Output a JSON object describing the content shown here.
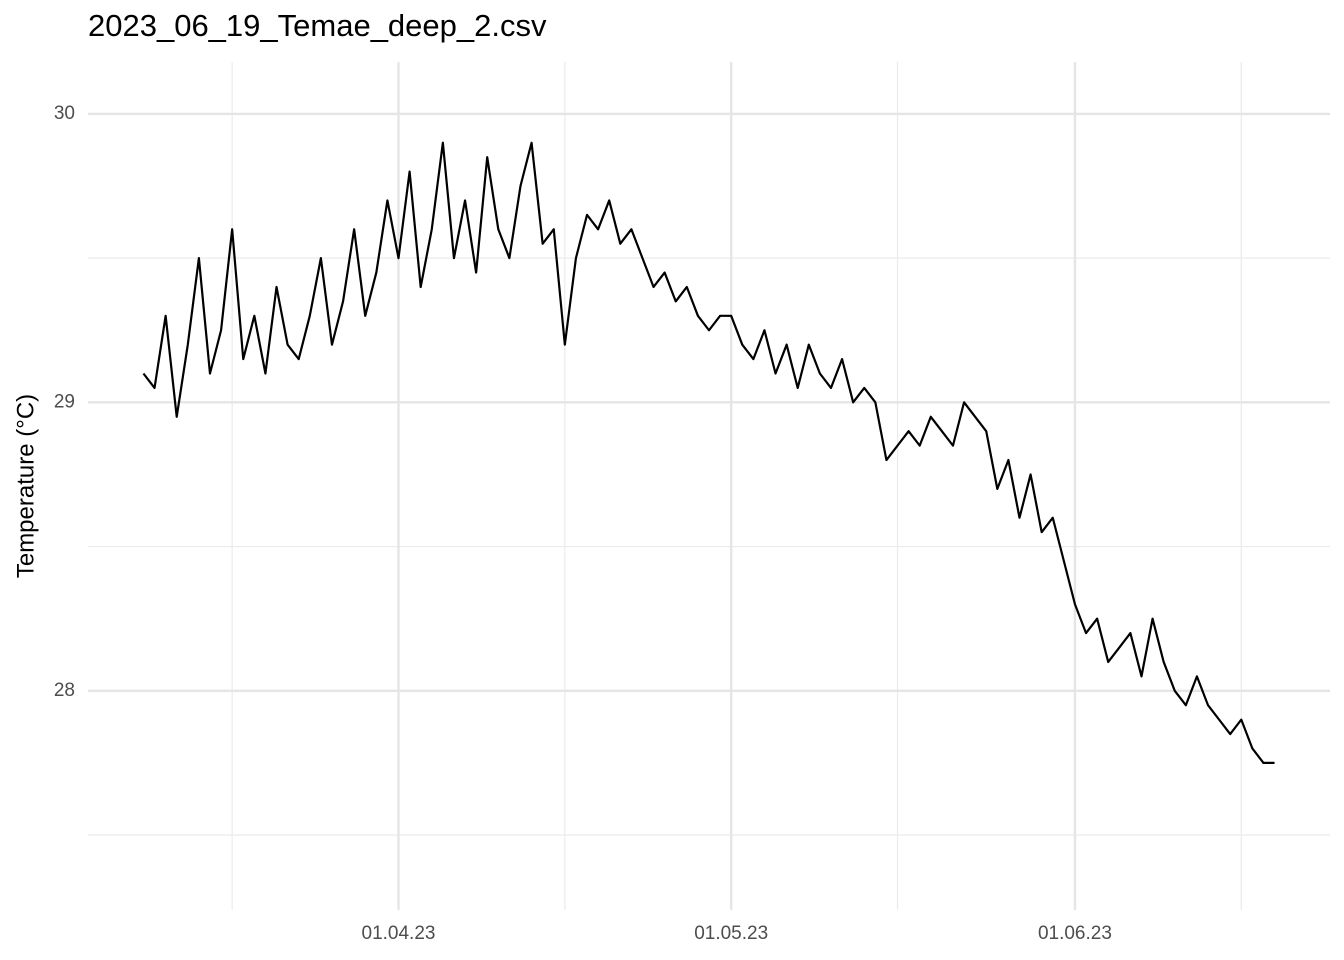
{
  "chart_data": {
    "type": "line",
    "title": "2023_06_19_Temae_deep_2.csv",
    "y_label": "Temperature (°C)",
    "color": "#000000",
    "grid": true,
    "x": [
      "2023-03-09",
      "2023-03-10",
      "2023-03-11",
      "2023-03-12",
      "2023-03-13",
      "2023-03-14",
      "2023-03-15",
      "2023-03-16",
      "2023-03-17",
      "2023-03-18",
      "2023-03-19",
      "2023-03-20",
      "2023-03-21",
      "2023-03-22",
      "2023-03-23",
      "2023-03-24",
      "2023-03-25",
      "2023-03-26",
      "2023-03-27",
      "2023-03-28",
      "2023-03-29",
      "2023-03-30",
      "2023-03-31",
      "2023-04-01",
      "2023-04-02",
      "2023-04-03",
      "2023-04-04",
      "2023-04-05",
      "2023-04-06",
      "2023-04-07",
      "2023-04-08",
      "2023-04-09",
      "2023-04-10",
      "2023-04-11",
      "2023-04-12",
      "2023-04-13",
      "2023-04-14",
      "2023-04-15",
      "2023-04-16",
      "2023-04-17",
      "2023-04-18",
      "2023-04-19",
      "2023-04-20",
      "2023-04-21",
      "2023-04-22",
      "2023-04-23",
      "2023-04-24",
      "2023-04-25",
      "2023-04-26",
      "2023-04-27",
      "2023-04-28",
      "2023-04-29",
      "2023-04-30",
      "2023-05-01",
      "2023-05-02",
      "2023-05-03",
      "2023-05-04",
      "2023-05-05",
      "2023-05-06",
      "2023-05-07",
      "2023-05-08",
      "2023-05-09",
      "2023-05-10",
      "2023-05-11",
      "2023-05-12",
      "2023-05-13",
      "2023-05-14",
      "2023-05-15",
      "2023-05-16",
      "2023-05-17",
      "2023-05-18",
      "2023-05-19",
      "2023-05-20",
      "2023-05-21",
      "2023-05-22",
      "2023-05-23",
      "2023-05-24",
      "2023-05-25",
      "2023-05-26",
      "2023-05-27",
      "2023-05-28",
      "2023-05-29",
      "2023-05-30",
      "2023-05-31",
      "2023-06-01",
      "2023-06-02",
      "2023-06-03",
      "2023-06-04",
      "2023-06-05",
      "2023-06-06",
      "2023-06-07",
      "2023-06-08",
      "2023-06-09",
      "2023-06-10",
      "2023-06-11",
      "2023-06-12",
      "2023-06-13",
      "2023-06-14",
      "2023-06-15",
      "2023-06-16",
      "2023-06-17",
      "2023-06-18",
      "2023-06-19"
    ],
    "values": [
      29.1,
      29.05,
      29.3,
      28.95,
      29.2,
      29.5,
      29.1,
      29.25,
      29.6,
      29.15,
      29.3,
      29.1,
      29.4,
      29.2,
      29.15,
      29.3,
      29.5,
      29.2,
      29.35,
      29.6,
      29.3,
      29.45,
      29.7,
      29.5,
      29.8,
      29.4,
      29.6,
      29.9,
      29.5,
      29.7,
      29.45,
      29.85,
      29.6,
      29.5,
      29.75,
      29.9,
      29.55,
      29.6,
      29.2,
      29.5,
      29.65,
      29.6,
      29.7,
      29.55,
      29.6,
      29.5,
      29.4,
      29.45,
      29.35,
      29.4,
      29.3,
      29.25,
      29.3,
      29.3,
      29.2,
      29.15,
      29.25,
      29.1,
      29.2,
      29.05,
      29.2,
      29.1,
      29.05,
      29.15,
      29.0,
      29.05,
      29.0,
      28.8,
      28.85,
      28.9,
      28.85,
      28.95,
      28.9,
      28.85,
      29.0,
      28.95,
      28.9,
      28.7,
      28.8,
      28.6,
      28.75,
      28.55,
      28.6,
      28.45,
      28.3,
      28.2,
      28.25,
      28.1,
      28.15,
      28.2,
      28.05,
      28.25,
      28.1,
      28.0,
      27.95,
      28.05,
      27.95,
      27.9,
      27.85,
      27.9,
      27.8,
      27.75,
      27.75
    ],
    "xlim": [
      "2023-03-04",
      "2023-06-24"
    ],
    "xticks": [
      {
        "value": "2023-04-01",
        "label": "01.04.23"
      },
      {
        "value": "2023-05-01",
        "label": "01.05.23"
      },
      {
        "value": "2023-06-01",
        "label": "01.06.23"
      }
    ],
    "x_minor_grid": [
      "2023-03-17",
      "2023-04-16",
      "2023-05-16",
      "2023-06-16"
    ],
    "ylim": [
      27.24,
      30.18
    ],
    "yticks": [
      28,
      29,
      30
    ],
    "y_minor_grid": [
      27.5,
      28.5,
      29.5
    ]
  }
}
